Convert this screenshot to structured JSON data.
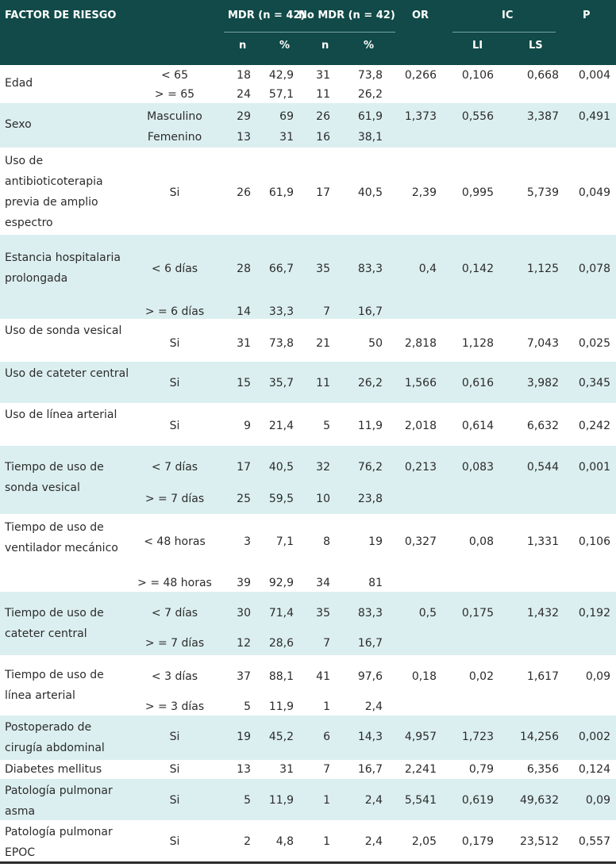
{
  "header": {
    "factor": "FACTOR DE RIESGO",
    "mdr": "MDR (n = 42)",
    "nomdr": "No MDR (n = 42)",
    "or": "OR",
    "ic": "IC",
    "p": "P",
    "n1": "n",
    "pct1": "%",
    "n2": "n",
    "pct2": "%",
    "li": "LI",
    "ls": "LS"
  },
  "rows": [
    {
      "factor": "Edad",
      "shade": false,
      "stats": [
        "0,266",
        "0,106",
        "0,668",
        "0,004"
      ],
      "lines": [
        [
          "< 65",
          "18",
          "42,9",
          "31",
          "73,8"
        ],
        [
          "> = 65",
          "24",
          "57,1",
          "11",
          "26,2"
        ]
      ]
    },
    {
      "factor": "Sexo",
      "shade": true,
      "stats": [
        "1,373",
        "0,556",
        "3,387",
        "0,491"
      ],
      "lines": [
        [
          "Masculino",
          "29",
          "69",
          "26",
          "61,9"
        ],
        [
          "Femenino",
          "13",
          "31",
          "16",
          "38,1"
        ]
      ]
    },
    {
      "factor": "Uso de antibioticoterapia previa de amplio espectro",
      "shade": false,
      "stats": [
        "2,39",
        "0,995",
        "5,739",
        "0,049"
      ],
      "lines": [
        [
          "Si",
          "26",
          "61,9",
          "17",
          "40,5"
        ]
      ]
    },
    {
      "factor": "Estancia hospitalaria prolongada",
      "shade": true,
      "stats": [
        "0,4",
        "0,142",
        "1,125",
        "0,078"
      ],
      "lines": [
        [
          "< 6 días",
          "28",
          "66,7",
          "35",
          "83,3"
        ],
        [
          "> = 6 días",
          "14",
          "33,3",
          "7",
          "16,7"
        ]
      ]
    },
    {
      "factor": "Uso de sonda vesical",
      "shade": false,
      "stats": [
        "2,818",
        "1,128",
        "7,043",
        "0,025"
      ],
      "lines": [
        [
          "Si",
          "31",
          "73,8",
          "21",
          "50"
        ]
      ]
    },
    {
      "factor": "Uso de cateter central",
      "shade": true,
      "stats": [
        "1,566",
        "0,616",
        "3,982",
        "0,345"
      ],
      "lines": [
        [
          "Si",
          "15",
          "35,7",
          "11",
          "26,2"
        ]
      ]
    },
    {
      "factor": "Uso de línea arterial",
      "shade": false,
      "stats": [
        "2,018",
        "0,614",
        "6,632",
        "0,242"
      ],
      "lines": [
        [
          "Si",
          "9",
          "21,4",
          "5",
          "11,9"
        ]
      ]
    },
    {
      "factor": "Tiempo de uso de sonda vesical",
      "shade": true,
      "stats": [
        "0,213",
        "0,083",
        "0,544",
        "0,001"
      ],
      "lines": [
        [
          "< 7 días",
          "17",
          "40,5",
          "32",
          "76,2"
        ],
        [
          "> = 7 días",
          "25",
          "59,5",
          "10",
          "23,8"
        ]
      ]
    },
    {
      "factor": "Tiempo de uso de ventilador mecánico",
      "shade": false,
      "stats": [
        "0,327",
        "0,08",
        "1,331",
        "0,106"
      ],
      "lines": [
        [
          "< 48 horas",
          "3",
          "7,1",
          "8",
          "19"
        ],
        [
          "> = 48 horas",
          "39",
          "92,9",
          "34",
          "81"
        ]
      ]
    },
    {
      "factor": "Tiempo de uso de cateter central",
      "shade": true,
      "stats": [
        "0,5",
        "0,175",
        "1,432",
        "0,192"
      ],
      "lines": [
        [
          "< 7 días",
          "30",
          "71,4",
          "35",
          "83,3"
        ],
        [
          "> = 7 días",
          "12",
          "28,6",
          "7",
          "16,7"
        ]
      ]
    },
    {
      "factor": "Tiempo de uso de línea arterial",
      "shade": false,
      "stats": [
        "0,18",
        "0,02",
        "1,617",
        "0,09"
      ],
      "lines": [
        [
          "< 3 días",
          "37",
          "88,1",
          "41",
          "97,6"
        ],
        [
          "> = 3 días",
          "5",
          "11,9",
          "1",
          "2,4"
        ]
      ]
    },
    {
      "factor": "Postoperado de cirugía abdominal",
      "shade": true,
      "stats": [
        "4,957",
        "1,723",
        "14,256",
        "0,002"
      ],
      "lines": [
        [
          "Si",
          "19",
          "45,2",
          "6",
          "14,3"
        ]
      ]
    },
    {
      "factor": "Diabetes mellitus",
      "shade": false,
      "stats": [
        "2,241",
        "0,79",
        "6,356",
        "0,124"
      ],
      "lines": [
        [
          "Si",
          "13",
          "31",
          "7",
          "16,7"
        ]
      ]
    },
    {
      "factor": "Patología pulmonar asma",
      "shade": true,
      "stats": [
        "5,541",
        "0,619",
        "49,632",
        "0,09"
      ],
      "lines": [
        [
          "Si",
          "5",
          "11,9",
          "1",
          "2,4"
        ]
      ]
    },
    {
      "factor": "Patología pulmonar EPOC",
      "shade": false,
      "stats": [
        "2,05",
        "0,179",
        "23,512",
        "0,557"
      ],
      "lines": [
        [
          "Si",
          "2",
          "4,8",
          "1",
          "2,4"
        ]
      ]
    }
  ]
}
